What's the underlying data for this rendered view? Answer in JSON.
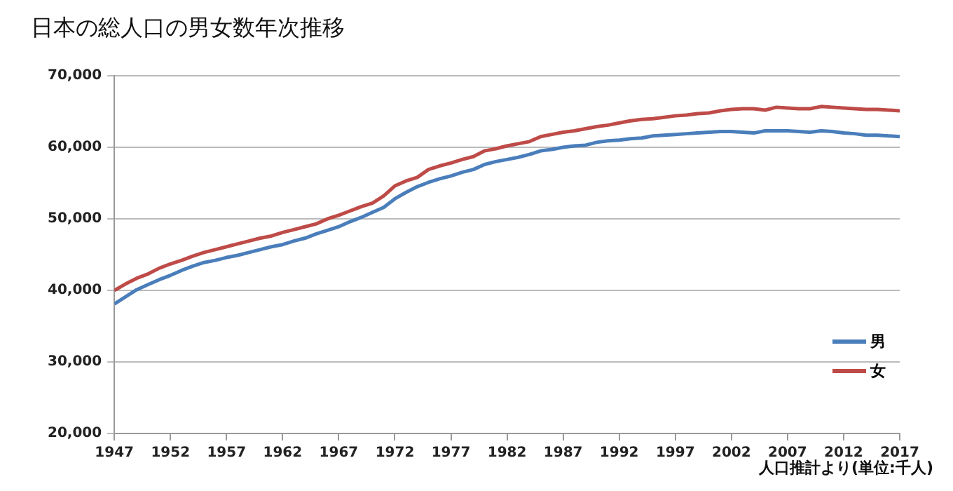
{
  "chart_data": {
    "type": "line",
    "title": "日本の総人口の男女数年次推移",
    "x": [
      1947,
      1948,
      1949,
      1950,
      1951,
      1952,
      1953,
      1954,
      1955,
      1956,
      1957,
      1958,
      1959,
      1960,
      1961,
      1962,
      1963,
      1964,
      1965,
      1966,
      1967,
      1968,
      1969,
      1970,
      1971,
      1972,
      1973,
      1974,
      1975,
      1976,
      1977,
      1978,
      1979,
      1980,
      1981,
      1982,
      1983,
      1984,
      1985,
      1986,
      1987,
      1988,
      1989,
      1990,
      1991,
      1992,
      1993,
      1994,
      1995,
      1996,
      1997,
      1998,
      1999,
      2000,
      2001,
      2002,
      2003,
      2004,
      2005,
      2006,
      2007,
      2008,
      2009,
      2010,
      2011,
      2012,
      2013,
      2014,
      2015,
      2016,
      2017
    ],
    "series": [
      {
        "name": "男",
        "color": "#4a7ebb",
        "values": [
          38100,
          39100,
          40100,
          40800,
          41500,
          42100,
          42800,
          43400,
          43900,
          44200,
          44600,
          44900,
          45300,
          45700,
          46100,
          46400,
          46900,
          47300,
          47900,
          48400,
          48900,
          49600,
          50200,
          50900,
          51600,
          52800,
          53700,
          54500,
          55100,
          55600,
          56000,
          56500,
          56900,
          57600,
          58000,
          58300,
          58600,
          59000,
          59500,
          59700,
          60000,
          60200,
          60300,
          60700,
          60900,
          61000,
          61200,
          61300,
          61600,
          61700,
          61800,
          61900,
          62000,
          62100,
          62200,
          62200,
          62100,
          62000,
          62300,
          62300,
          62300,
          62200,
          62100,
          62300,
          62200,
          62000,
          61900,
          61700,
          61700,
          61600,
          61500
        ]
      },
      {
        "name": "女",
        "color": "#be4b48",
        "values": [
          40000,
          40900,
          41700,
          42300,
          43100,
          43700,
          44200,
          44800,
          45300,
          45700,
          46100,
          46500,
          46900,
          47300,
          47600,
          48100,
          48500,
          48900,
          49300,
          50000,
          50500,
          51100,
          51700,
          52200,
          53200,
          54600,
          55300,
          55800,
          56900,
          57400,
          57800,
          58300,
          58700,
          59500,
          59800,
          60200,
          60500,
          60800,
          61500,
          61800,
          62100,
          62300,
          62600,
          62900,
          63100,
          63400,
          63700,
          63900,
          64000,
          64200,
          64400,
          64500,
          64700,
          64800,
          65100,
          65300,
          65400,
          65400,
          65200,
          65600,
          65500,
          65400,
          65400,
          65700,
          65600,
          65500,
          65400,
          65300,
          65300,
          65200,
          65100
        ]
      }
    ],
    "xlim": [
      1947,
      2017
    ],
    "xticks": [
      1947,
      1952,
      1957,
      1962,
      1967,
      1972,
      1977,
      1982,
      1987,
      1992,
      1997,
      2002,
      2007,
      2012,
      2017
    ],
    "ylim": [
      20000,
      70000
    ],
    "yticks": [
      {
        "value": 20000,
        "label": "20,000"
      },
      {
        "value": 30000,
        "label": "30,000"
      },
      {
        "value": 40000,
        "label": "40,000"
      },
      {
        "value": 50000,
        "label": "50,000"
      },
      {
        "value": 60000,
        "label": "60,000"
      },
      {
        "value": 70000,
        "label": "70,000"
      }
    ],
    "grid": "y",
    "legend": "bottom right",
    "marker": "none",
    "line_style": "solid",
    "annotations": [
      "人口推計より(単位:千人)"
    ]
  }
}
